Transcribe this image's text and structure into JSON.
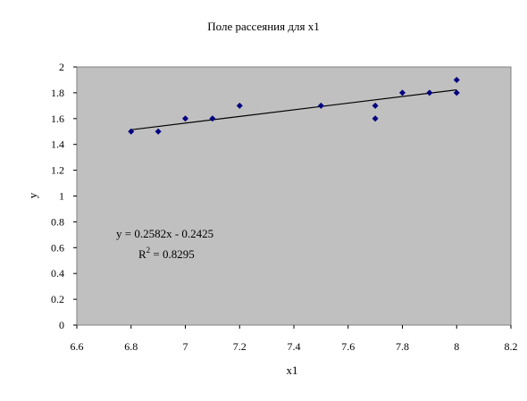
{
  "chart_data": {
    "type": "scatter",
    "title": "Поле рассеяния для x1",
    "xlabel": "x1",
    "ylabel": "y",
    "xlim": [
      6.6,
      8.2
    ],
    "ylim": [
      0,
      2
    ],
    "xticks": [
      "6.6",
      "6.8",
      "7",
      "7.2",
      "7.4",
      "7.6",
      "7.8",
      "8",
      "8.2"
    ],
    "yticks": [
      "0",
      "0.2",
      "0.4",
      "0.6",
      "0.8",
      "1",
      "1.2",
      "1.4",
      "1.6",
      "1.8",
      "2"
    ],
    "grid": false,
    "series": [
      {
        "points": [
          {
            "x": 6.8,
            "y": 1.5
          },
          {
            "x": 6.9,
            "y": 1.5
          },
          {
            "x": 7.0,
            "y": 1.6
          },
          {
            "x": 7.1,
            "y": 1.6
          },
          {
            "x": 7.2,
            "y": 1.7
          },
          {
            "x": 7.5,
            "y": 1.7
          },
          {
            "x": 7.7,
            "y": 1.7
          },
          {
            "x": 7.7,
            "y": 1.6
          },
          {
            "x": 7.8,
            "y": 1.8
          },
          {
            "x": 7.9,
            "y": 1.8
          },
          {
            "x": 8.0,
            "y": 1.9
          },
          {
            "x": 8.0,
            "y": 1.8
          }
        ],
        "color": "#000080"
      }
    ],
    "trendline": {
      "slope": 0.2582,
      "intercept": -0.2425,
      "x_range": [
        6.8,
        8.0
      ],
      "equation": "y = 0.2582x - 0.2425",
      "r2_label": "R",
      "r2_sup": "2",
      "r2_value": " = 0.8295"
    },
    "colors": {
      "plot_area": "#c0c0c0",
      "marker": "#000080",
      "line": "#000000"
    }
  }
}
